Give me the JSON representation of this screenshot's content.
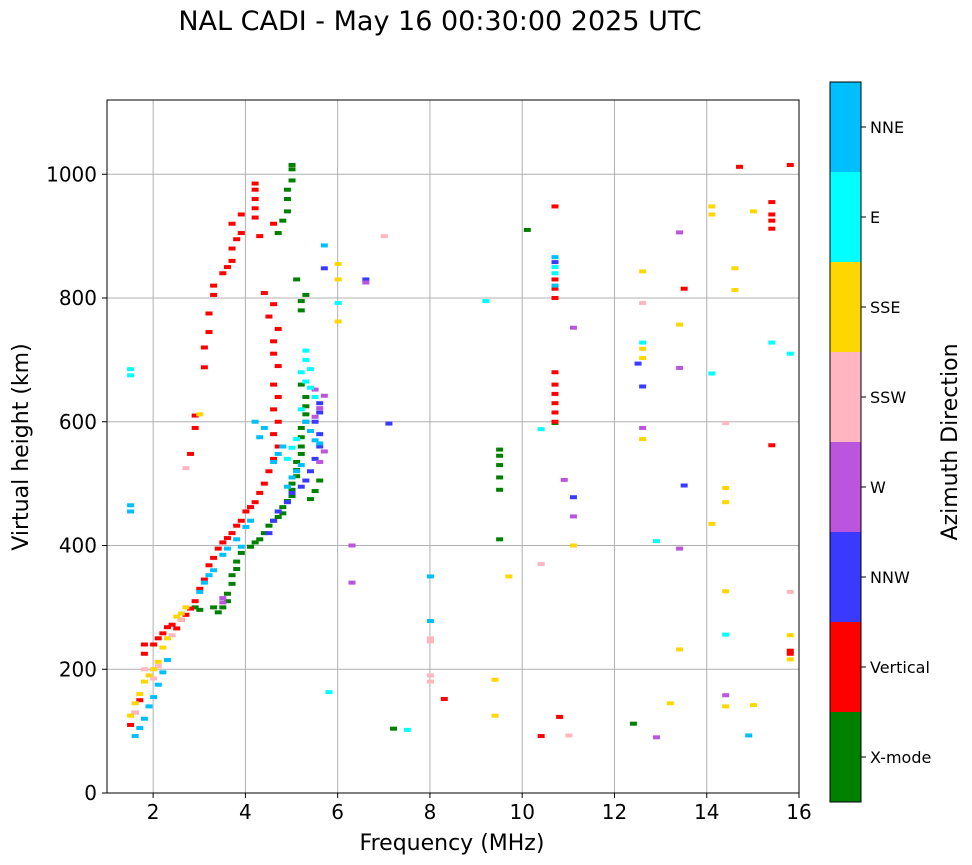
{
  "chart_data": {
    "type": "scatter",
    "title": "NAL CADI - May 16 00:30:00 2025 UTC",
    "xlabel": "Frequency (MHz)",
    "ylabel": "Virtual height (km)",
    "xlim": [
      1,
      16
    ],
    "ylim": [
      0,
      1120
    ],
    "xticks": [
      "2",
      "4",
      "6",
      "8",
      "10",
      "12",
      "14",
      "16"
    ],
    "yticks": [
      "0",
      "200",
      "400",
      "600",
      "800",
      "1000"
    ],
    "grid": true,
    "colorbar": {
      "label": "Azimuth Direction",
      "categories": [
        "X-mode",
        "Vertical",
        "NNW",
        "W",
        "SSW",
        "SSE",
        "E",
        "NNE"
      ],
      "colors": [
        "#008000",
        "#ff0000",
        "#3a3aff",
        "#bb55dd",
        "#ffb6c1",
        "#ffd700",
        "#00ffff",
        "#00bfff"
      ]
    },
    "series": [
      {
        "name": "X-mode",
        "points": [
          [
            2.9,
            300
          ],
          [
            3,
            296
          ],
          [
            3.3,
            300
          ],
          [
            3.4,
            292
          ],
          [
            3.5,
            300
          ],
          [
            3.6,
            310
          ],
          [
            3.6,
            322
          ],
          [
            3.7,
            338
          ],
          [
            3.7,
            352
          ],
          [
            3.8,
            362
          ],
          [
            3.8,
            374
          ],
          [
            3.9,
            388
          ],
          [
            4.1,
            398
          ],
          [
            4.2,
            405
          ],
          [
            4.3,
            410
          ],
          [
            4.4,
            420
          ],
          [
            4.5,
            432
          ],
          [
            4.6,
            440
          ],
          [
            4.7,
            446
          ],
          [
            4.8,
            452
          ],
          [
            4.8,
            462
          ],
          [
            4.9,
            472
          ],
          [
            5,
            480
          ],
          [
            5,
            490
          ],
          [
            5,
            500
          ],
          [
            5.1,
            512
          ],
          [
            5.1,
            522
          ],
          [
            5.1,
            535
          ],
          [
            5.2,
            548
          ],
          [
            5.2,
            560
          ],
          [
            5.2,
            575
          ],
          [
            5.2,
            590
          ],
          [
            5.3,
            600
          ],
          [
            5.3,
            612
          ],
          [
            5.3,
            625
          ],
          [
            5.3,
            640
          ],
          [
            5.2,
            660
          ],
          [
            5.2,
            780
          ],
          [
            5.2,
            795
          ],
          [
            5.3,
            805
          ],
          [
            5.1,
            830
          ],
          [
            4.7,
            905
          ],
          [
            4.8,
            925
          ],
          [
            4.9,
            940
          ],
          [
            4.9,
            960
          ],
          [
            4.9,
            975
          ],
          [
            5,
            990
          ],
          [
            5,
            1008
          ],
          [
            5,
            1015
          ],
          [
            5.4,
            475
          ],
          [
            5.5,
            488
          ],
          [
            5.6,
            505
          ],
          [
            10.1,
            910
          ],
          [
            10.7,
            598
          ],
          [
            12.4,
            112
          ],
          [
            7.2,
            104
          ],
          [
            9.5,
            410
          ],
          [
            9.5,
            490
          ],
          [
            9.5,
            510
          ],
          [
            9.5,
            530
          ],
          [
            9.5,
            545
          ],
          [
            9.5,
            555
          ]
        ]
      },
      {
        "name": "Vertical",
        "points": [
          [
            1.5,
            110
          ],
          [
            1.6,
            130
          ],
          [
            1.7,
            150
          ],
          [
            1.8,
            225
          ],
          [
            1.8,
            240
          ],
          [
            2,
            240
          ],
          [
            2.1,
            250
          ],
          [
            2.2,
            258
          ],
          [
            2.3,
            268
          ],
          [
            2.4,
            272
          ],
          [
            2.5,
            266
          ],
          [
            2.6,
            280
          ],
          [
            2.7,
            288
          ],
          [
            2.8,
            298
          ],
          [
            2.9,
            310
          ],
          [
            3,
            330
          ],
          [
            3.1,
            345
          ],
          [
            3.2,
            368
          ],
          [
            3.3,
            380
          ],
          [
            3.4,
            395
          ],
          [
            3.5,
            405
          ],
          [
            3.6,
            412
          ],
          [
            3.7,
            420
          ],
          [
            3.8,
            432
          ],
          [
            3.9,
            440
          ],
          [
            4,
            455
          ],
          [
            4.1,
            462
          ],
          [
            4.2,
            470
          ],
          [
            4.3,
            485
          ],
          [
            4.4,
            500
          ],
          [
            4.5,
            520
          ],
          [
            4.6,
            540
          ],
          [
            4.7,
            560
          ],
          [
            4.6,
            580
          ],
          [
            4.7,
            600
          ],
          [
            4.6,
            620
          ],
          [
            4.7,
            640
          ],
          [
            4.6,
            660
          ],
          [
            4.7,
            690
          ],
          [
            4.6,
            710
          ],
          [
            4.6,
            730
          ],
          [
            4.7,
            750
          ],
          [
            4.5,
            770
          ],
          [
            4.6,
            790
          ],
          [
            4.4,
            808
          ],
          [
            2.8,
            548
          ],
          [
            2.9,
            590
          ],
          [
            2.9,
            610
          ],
          [
            3.1,
            688
          ],
          [
            3.1,
            720
          ],
          [
            3.2,
            745
          ],
          [
            3.2,
            775
          ],
          [
            3.3,
            805
          ],
          [
            3.3,
            820
          ],
          [
            3.5,
            840
          ],
          [
            3.6,
            850
          ],
          [
            3.7,
            860
          ],
          [
            3.7,
            880
          ],
          [
            3.8,
            895
          ],
          [
            3.9,
            905
          ],
          [
            3.7,
            920
          ],
          [
            3.9,
            935
          ],
          [
            4.2,
            930
          ],
          [
            4.2,
            945
          ],
          [
            4.2,
            960
          ],
          [
            4.2,
            975
          ],
          [
            4.2,
            985
          ],
          [
            4.3,
            900
          ],
          [
            4.6,
            920
          ],
          [
            10.7,
            948
          ],
          [
            10.7,
            800
          ],
          [
            10.7,
            815
          ],
          [
            10.7,
            830
          ],
          [
            10.7,
            600
          ],
          [
            10.7,
            615
          ],
          [
            10.7,
            630
          ],
          [
            10.7,
            645
          ],
          [
            10.7,
            660
          ],
          [
            10.7,
            680
          ],
          [
            13.5,
            815
          ],
          [
            14.7,
            1012
          ],
          [
            15.4,
            955
          ],
          [
            15.4,
            935
          ],
          [
            15.4,
            925
          ],
          [
            15.4,
            912
          ],
          [
            15.8,
            1015
          ],
          [
            15.4,
            562
          ],
          [
            15.8,
            230
          ],
          [
            15.8,
            225
          ],
          [
            8.3,
            152
          ],
          [
            10.4,
            92
          ],
          [
            10.8,
            123
          ]
        ]
      },
      {
        "name": "NNW",
        "points": [
          [
            4.5,
            420
          ],
          [
            4.6,
            440
          ],
          [
            4.7,
            455
          ],
          [
            4.9,
            470
          ],
          [
            5,
            485
          ],
          [
            5.2,
            495
          ],
          [
            5.3,
            505
          ],
          [
            5.4,
            520
          ],
          [
            5.5,
            540
          ],
          [
            5.6,
            560
          ],
          [
            5.6,
            580
          ],
          [
            5.5,
            600
          ],
          [
            5.6,
            615
          ],
          [
            5.6,
            630
          ],
          [
            5.7,
            848
          ],
          [
            6.6,
            830
          ],
          [
            12.5,
            694
          ],
          [
            12.6,
            657
          ],
          [
            13.5,
            497
          ],
          [
            10.7,
            858
          ],
          [
            7.1,
            597
          ],
          [
            11.1,
            478
          ]
        ]
      },
      {
        "name": "W",
        "points": [
          [
            5.5,
            608
          ],
          [
            5.6,
            622
          ],
          [
            5.7,
            642
          ],
          [
            5.5,
            652
          ],
          [
            5.6,
            535
          ],
          [
            5.7,
            552
          ],
          [
            6.6,
            825
          ],
          [
            3.5,
            308
          ],
          [
            3.5,
            315
          ],
          [
            6.3,
            400
          ],
          [
            6.3,
            340
          ],
          [
            12.6,
            590
          ],
          [
            13.4,
            906
          ],
          [
            13.4,
            687
          ],
          [
            13.4,
            395
          ],
          [
            14.4,
            158
          ],
          [
            11.1,
            447
          ],
          [
            11.1,
            752
          ],
          [
            12.9,
            90
          ],
          [
            10.9,
            506
          ]
        ]
      },
      {
        "name": "SSW",
        "points": [
          [
            1.6,
            130
          ],
          [
            1.8,
            200
          ],
          [
            2,
            185
          ],
          [
            2.1,
            205
          ],
          [
            2.4,
            255
          ],
          [
            2.6,
            280
          ],
          [
            2.7,
            525
          ],
          [
            7.0,
            900
          ],
          [
            8,
            250
          ],
          [
            8,
            245
          ],
          [
            8,
            190
          ],
          [
            8,
            180
          ],
          [
            12.6,
            792
          ],
          [
            14.4,
            598
          ],
          [
            15.8,
            325
          ],
          [
            10.4,
            370
          ],
          [
            11,
            93
          ]
        ]
      },
      {
        "name": "SSE",
        "points": [
          [
            1.5,
            125
          ],
          [
            1.6,
            145
          ],
          [
            1.7,
            160
          ],
          [
            1.8,
            180
          ],
          [
            1.9,
            190
          ],
          [
            2,
            200
          ],
          [
            2.1,
            212
          ],
          [
            2.2,
            235
          ],
          [
            2.3,
            250
          ],
          [
            2.5,
            285
          ],
          [
            2.6,
            290
          ],
          [
            2.7,
            300
          ],
          [
            3,
            612
          ],
          [
            6,
            855
          ],
          [
            6,
            830
          ],
          [
            6,
            762
          ],
          [
            12.6,
            843
          ],
          [
            12.6,
            718
          ],
          [
            12.6,
            703
          ],
          [
            12.6,
            572
          ],
          [
            14.1,
            948
          ],
          [
            14.1,
            935
          ],
          [
            14.4,
            493
          ],
          [
            14.4,
            470
          ],
          [
            14.1,
            435
          ],
          [
            14.4,
            326
          ],
          [
            14.4,
            140
          ],
          [
            14.6,
            848
          ],
          [
            14.6,
            813
          ],
          [
            15,
            940
          ],
          [
            15,
            142
          ],
          [
            13.4,
            757
          ],
          [
            13.4,
            232
          ],
          [
            13.2,
            145
          ],
          [
            15.8,
            255
          ],
          [
            15.8,
            216
          ],
          [
            9.4,
            183
          ],
          [
            9.4,
            125
          ],
          [
            11.1,
            400
          ],
          [
            9.7,
            350
          ]
        ]
      },
      {
        "name": "E",
        "points": [
          [
            1.5,
            685
          ],
          [
            1.5,
            675
          ],
          [
            5.3,
            700
          ],
          [
            5.4,
            685
          ],
          [
            5.2,
            680
          ],
          [
            5.3,
            665
          ],
          [
            5.4,
            655
          ],
          [
            5.5,
            640
          ],
          [
            5.2,
            620
          ],
          [
            4.9,
            540
          ],
          [
            5,
            558
          ],
          [
            5.1,
            572
          ],
          [
            5.3,
            715
          ],
          [
            6,
            792
          ],
          [
            9.2,
            795
          ],
          [
            10.4,
            588
          ],
          [
            10.7,
            840
          ],
          [
            10.7,
            850
          ],
          [
            12.6,
            728
          ],
          [
            12.9,
            407
          ],
          [
            14.1,
            678
          ],
          [
            14.4,
            256
          ],
          [
            15.4,
            728
          ],
          [
            15.8,
            710
          ],
          [
            5.8,
            163
          ],
          [
            7.5,
            102
          ]
        ]
      },
      {
        "name": "NNE",
        "points": [
          [
            1.5,
            465
          ],
          [
            1.5,
            455
          ],
          [
            1.6,
            92
          ],
          [
            1.7,
            105
          ],
          [
            1.8,
            120
          ],
          [
            1.9,
            140
          ],
          [
            2,
            155
          ],
          [
            2.1,
            175
          ],
          [
            2.2,
            195
          ],
          [
            2.3,
            215
          ],
          [
            3,
            325
          ],
          [
            3.1,
            340
          ],
          [
            3.2,
            352
          ],
          [
            3.3,
            360
          ],
          [
            3.5,
            385
          ],
          [
            3.6,
            395
          ],
          [
            3.8,
            410
          ],
          [
            3.9,
            398
          ],
          [
            4,
            430
          ],
          [
            4.1,
            440
          ],
          [
            4.3,
            575
          ],
          [
            4.4,
            590
          ],
          [
            4.2,
            600
          ],
          [
            4.6,
            535
          ],
          [
            4.7,
            548
          ],
          [
            4.8,
            560
          ],
          [
            4.9,
            495
          ],
          [
            5,
            510
          ],
          [
            5.1,
            520
          ],
          [
            5.2,
            530
          ],
          [
            5.3,
            600
          ],
          [
            5.4,
            585
          ],
          [
            5.5,
            570
          ],
          [
            5.6,
            565
          ],
          [
            5.7,
            885
          ],
          [
            8,
            350
          ],
          [
            8,
            278
          ],
          [
            14.9,
            93
          ],
          [
            10.7,
            866
          ],
          [
            10.7,
            820
          ]
        ]
      }
    ]
  }
}
